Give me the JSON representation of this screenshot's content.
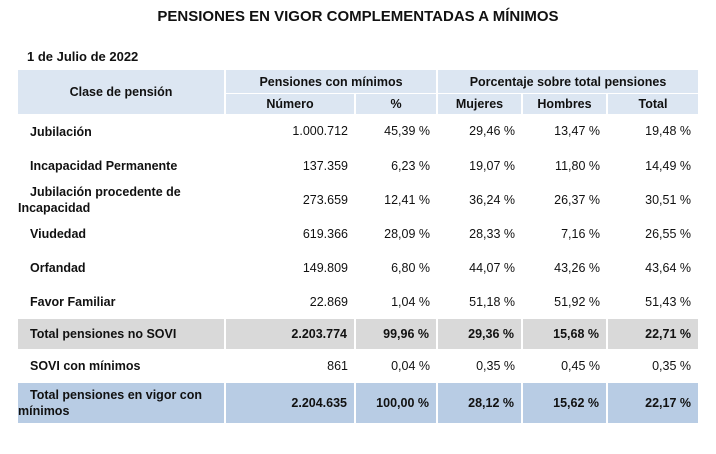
{
  "title": "PENSIONES EN VIGOR COMPLEMENTADAS A MÍNIMOS",
  "date": "1 de Julio de 2022",
  "headers": {
    "clase": "Clase de pensión",
    "group1": "Pensiones con mínimos",
    "group2": "Porcentaje sobre total pensiones",
    "numero": "Número",
    "pct": "%",
    "mujeres": "Mujeres",
    "hombres": "Hombres",
    "total": "Total"
  },
  "rows": [
    {
      "label": "Jubilación",
      "numero": "1.000.712",
      "pct": "45,39 %",
      "mujeres": "29,46 %",
      "hombres": "13,47 %",
      "total": "19,48 %",
      "style": ""
    },
    {
      "label": "Incapacidad Permanente",
      "numero": "137.359",
      "pct": "6,23 %",
      "mujeres": "19,07 %",
      "hombres": "11,80 %",
      "total": "14,49 %",
      "style": ""
    },
    {
      "label": "Jubilación procedente de Incapacidad",
      "numero": "273.659",
      "pct": "12,41 %",
      "mujeres": "36,24 %",
      "hombres": "26,37 %",
      "total": "30,51 %",
      "style": "wrap"
    },
    {
      "label": "Viudedad",
      "numero": "619.366",
      "pct": "28,09 %",
      "mujeres": "28,33 %",
      "hombres": "7,16 %",
      "total": "26,55 %",
      "style": ""
    },
    {
      "label": "Orfandad",
      "numero": "149.809",
      "pct": "6,80 %",
      "mujeres": "44,07 %",
      "hombres": "43,26 %",
      "total": "43,64 %",
      "style": ""
    },
    {
      "label": "Favor Familiar",
      "numero": "22.869",
      "pct": "1,04 %",
      "mujeres": "51,18 %",
      "hombres": "51,92 %",
      "total": "51,43 %",
      "style": ""
    },
    {
      "label": "Total pensiones no SOVI",
      "numero": "2.203.774",
      "pct": "99,96 %",
      "mujeres": "29,36 %",
      "hombres": "15,68 %",
      "total": "22,71 %",
      "style": "gray"
    },
    {
      "label": "SOVI con mínimos",
      "numero": "861",
      "pct": "0,04 %",
      "mujeres": "0,35 %",
      "hombres": "0,45 %",
      "total": "0,35 %",
      "style": ""
    },
    {
      "label": "Total pensiones en vigor con mínimos",
      "numero": "2.204.635",
      "pct": "100,00 %",
      "mujeres": "28,12 %",
      "hombres": "15,62 %",
      "total": "22,17 %",
      "style": "blue wrap"
    }
  ],
  "colors": {
    "header_bg": "#dce6f2",
    "subtotal_bg": "#d9d9d9",
    "total_bg": "#b8cce4"
  }
}
